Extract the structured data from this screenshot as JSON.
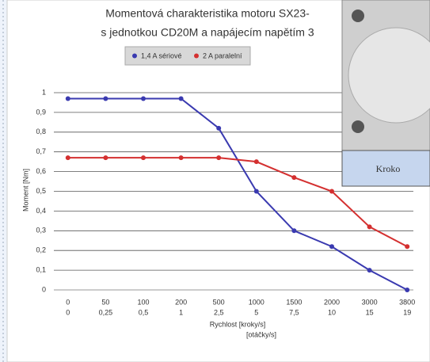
{
  "chart_data": {
    "type": "line",
    "title_lines": [
      "Momentová charakteristika motoru SX23-",
      "s jednotkou CD20M a napájecím napětím 3"
    ],
    "categories": [
      "0",
      "50",
      "100",
      "200",
      "500",
      "1000",
      "1500",
      "2000",
      "3000",
      "3800"
    ],
    "category_sublabels": [
      "0",
      "0,25",
      "0,5",
      "1",
      "2,5",
      "5",
      "7,5",
      "10",
      "15",
      "19"
    ],
    "x_label_lines": [
      "Rychlost [kroky/s]",
      "[otáčky/s]"
    ],
    "y_label": "Moment [Nm]",
    "series": [
      {
        "name": "1,4 A sériové",
        "color": "#3a3ab0",
        "values": [
          0.97,
          0.97,
          0.97,
          0.97,
          0.82,
          0.5,
          0.3,
          0.22,
          0.1,
          0.0
        ]
      },
      {
        "name": "2 A paralelní",
        "color": "#d43030",
        "values": [
          0.67,
          0.67,
          0.67,
          0.67,
          0.67,
          0.65,
          0.57,
          0.5,
          0.32,
          0.22
        ]
      }
    ],
    "ylim": [
      0,
      1
    ],
    "yticks": [
      0,
      {
        "value": 0.1,
        "label": "0,1"
      },
      {
        "value": 0.2,
        "label": "0,2"
      },
      {
        "value": 0.3,
        "label": "0,3"
      },
      {
        "value": 0.4,
        "label": "0,4"
      },
      {
        "value": 0.5,
        "label": "0,5"
      },
      {
        "value": 0.6,
        "label": "0,6"
      },
      {
        "value": 0.7,
        "label": "0,7"
      },
      {
        "value": 0.8,
        "label": "0,8"
      },
      {
        "value": 0.9,
        "label": "0,9"
      },
      1
    ],
    "grid": true,
    "legend": "top"
  },
  "figure": {
    "caption": "Kroko"
  }
}
